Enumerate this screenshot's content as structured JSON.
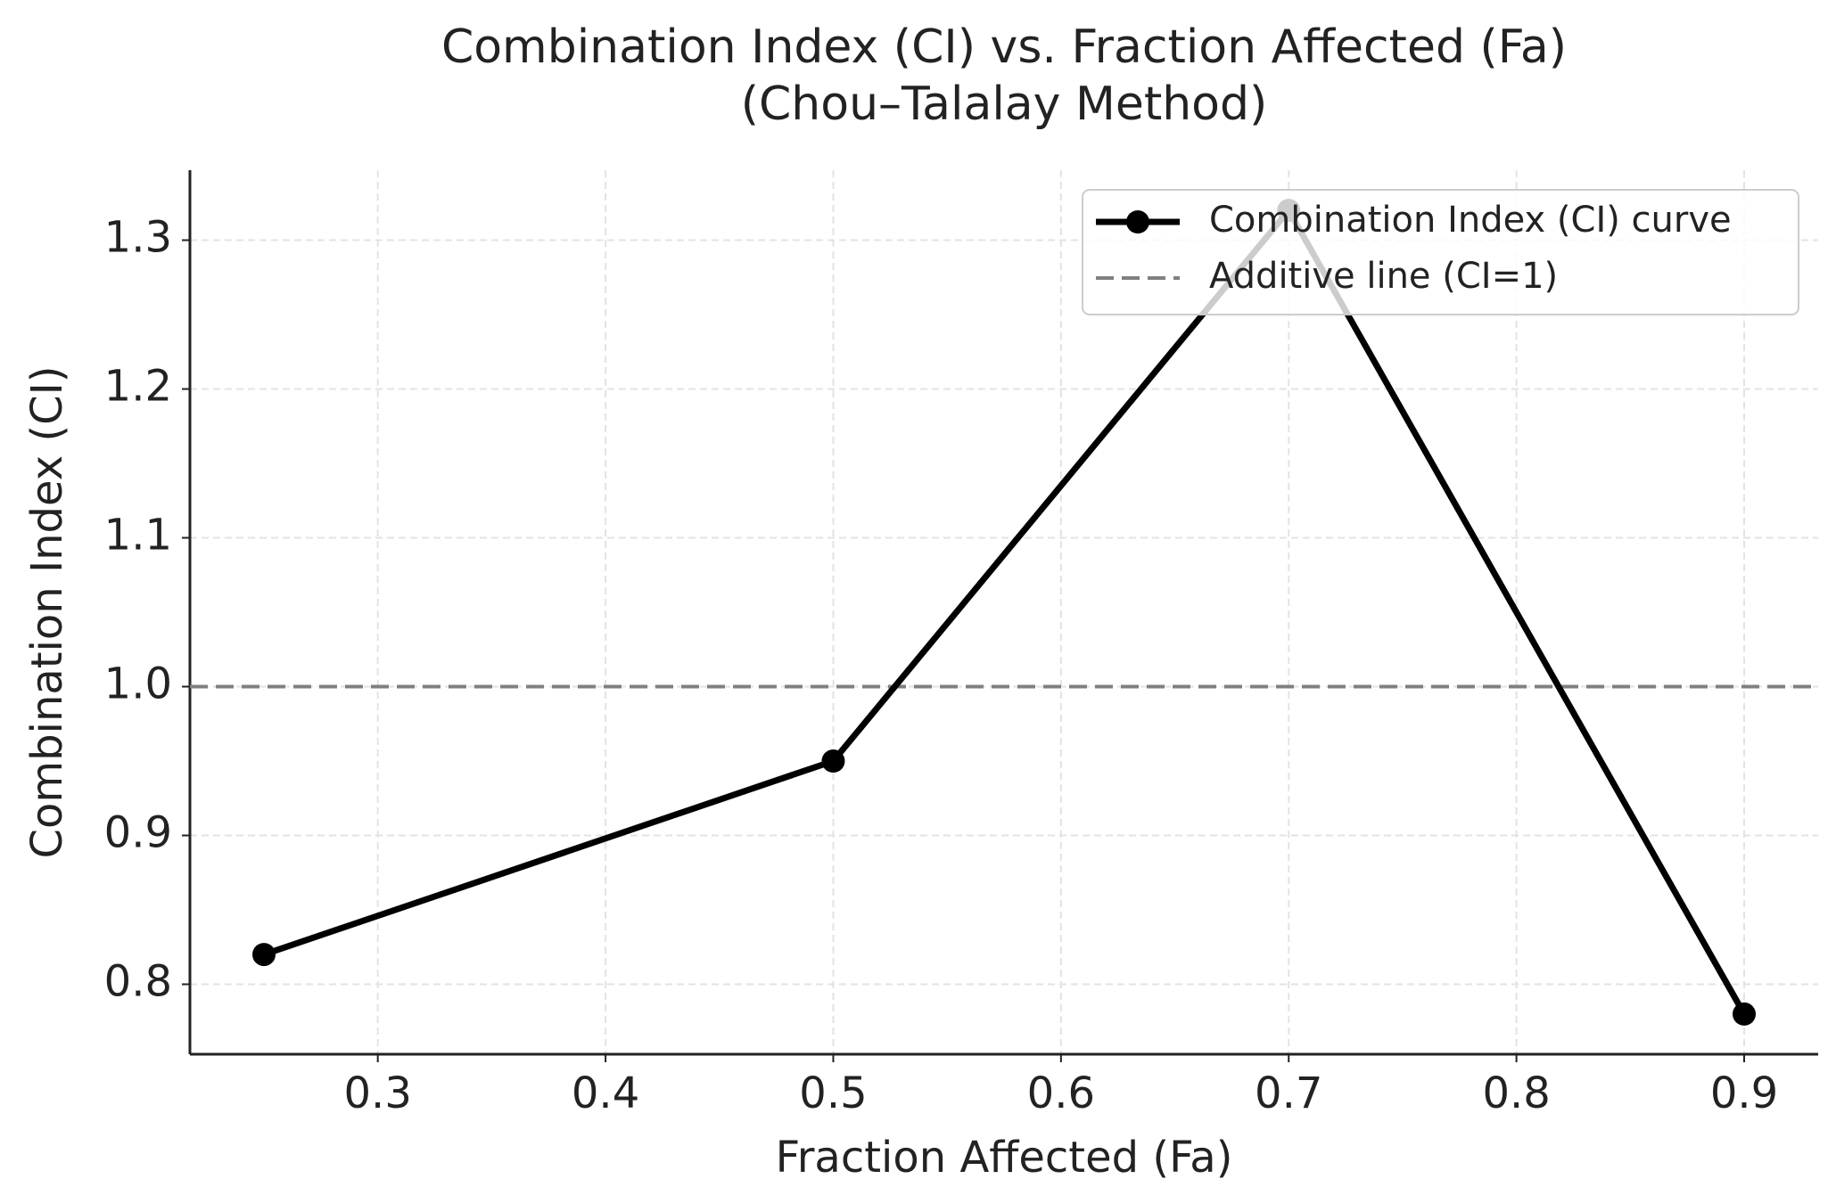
{
  "chart_data": {
    "type": "line",
    "title": [
      "Combination Index (CI) vs. Fraction Affected (Fa)",
      "(Chou–Talalay Method)"
    ],
    "x_label": "Fraction Affected (Fa)",
    "y_label": "Combination Index (CI)",
    "x": [
      0.25,
      0.5,
      0.7,
      0.9
    ],
    "series": [
      {
        "name": "Combination Index (CI) curve",
        "color": "#000000",
        "values": [
          0.82,
          0.95,
          1.32,
          0.78
        ]
      }
    ],
    "reference_line": {
      "name": "Additive line (CI=1)",
      "value": 1,
      "color": "#808080"
    },
    "xlim": [
      0.2175,
      0.9325
    ],
    "ylim": [
      0.753,
      1.347
    ],
    "xticks": [
      0.3,
      0.4,
      0.5,
      0.6,
      0.7,
      0.8,
      0.9
    ],
    "yticks": [
      0.8,
      0.9,
      {
        "value": 1,
        "label": "1.0"
      },
      1.1,
      1.2,
      1.3
    ],
    "grid": true,
    "legend": "upper right"
  }
}
